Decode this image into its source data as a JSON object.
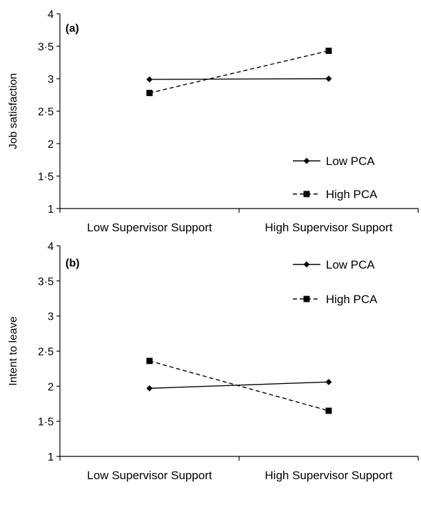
{
  "chart_data": [
    {
      "type": "line",
      "panel_label": "(a)",
      "categories": [
        "Low Supervisor Support",
        "High Supervisor Support"
      ],
      "ylabel": "Job satisfaction",
      "ylim": [
        1,
        4
      ],
      "yticks": [
        "1",
        "1·5",
        "2",
        "2·5",
        "3",
        "3·5",
        "4"
      ],
      "legend_position": "bottom-right",
      "series": [
        {
          "name": "Low PCA",
          "values": [
            2.99,
            3.0
          ],
          "style": "solid",
          "marker": "diamond"
        },
        {
          "name": "High PCA",
          "values": [
            2.78,
            3.43
          ],
          "style": "dashed",
          "marker": "square"
        }
      ]
    },
    {
      "type": "line",
      "panel_label": "(b)",
      "categories": [
        "Low Supervisor Support",
        "High Supervisor Support"
      ],
      "ylabel": "Intent to leave",
      "ylim": [
        1,
        4
      ],
      "yticks": [
        "1",
        "1·5",
        "2",
        "2·5",
        "3",
        "3·5",
        "4"
      ],
      "legend_position": "top-right",
      "series": [
        {
          "name": "Low PCA",
          "values": [
            1.97,
            2.06
          ],
          "style": "solid",
          "marker": "diamond"
        },
        {
          "name": "High PCA",
          "values": [
            2.36,
            1.65
          ],
          "style": "dashed",
          "marker": "square"
        }
      ]
    }
  ]
}
